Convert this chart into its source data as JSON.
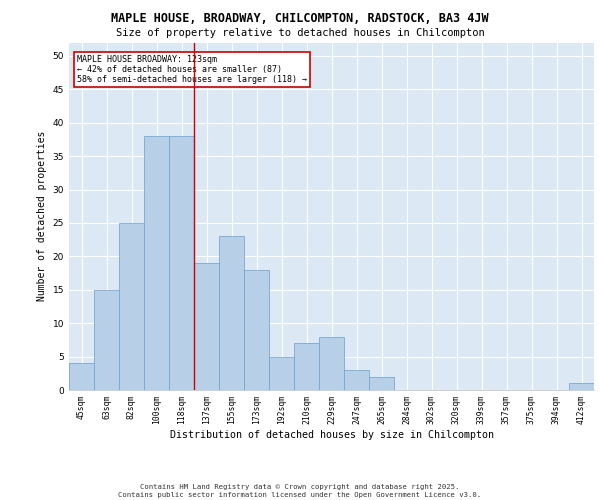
{
  "title": "MAPLE HOUSE, BROADWAY, CHILCOMPTON, RADSTOCK, BA3 4JW",
  "subtitle": "Size of property relative to detached houses in Chilcompton",
  "xlabel": "Distribution of detached houses by size in Chilcompton",
  "ylabel": "Number of detached properties",
  "categories": [
    "45sqm",
    "63sqm",
    "82sqm",
    "100sqm",
    "118sqm",
    "137sqm",
    "155sqm",
    "173sqm",
    "192sqm",
    "210sqm",
    "229sqm",
    "247sqm",
    "265sqm",
    "284sqm",
    "302sqm",
    "320sqm",
    "339sqm",
    "357sqm",
    "375sqm",
    "394sqm",
    "412sqm"
  ],
  "values": [
    4,
    15,
    25,
    38,
    38,
    19,
    23,
    18,
    5,
    7,
    8,
    3,
    2,
    0,
    0,
    0,
    0,
    0,
    0,
    0,
    1
  ],
  "bar_color": "#b8cfe8",
  "bar_edge_color": "#6aa0cc",
  "background_color": "#dce9f5",
  "grid_color": "#ffffff",
  "annotation_text": "MAPLE HOUSE BROADWAY: 123sqm\n← 42% of detached houses are smaller (87)\n58% of semi-detached houses are larger (118) →",
  "annotation_box_color": "#ffffff",
  "annotation_box_edge_color": "#cc0000",
  "vline_color": "#cc0000",
  "vline_x": 4.5,
  "ylim": [
    0,
    52
  ],
  "yticks": [
    0,
    5,
    10,
    15,
    20,
    25,
    30,
    35,
    40,
    45,
    50
  ],
  "footer_line1": "Contains HM Land Registry data © Crown copyright and database right 2025.",
  "footer_line2": "Contains public sector information licensed under the Open Government Licence v3.0."
}
